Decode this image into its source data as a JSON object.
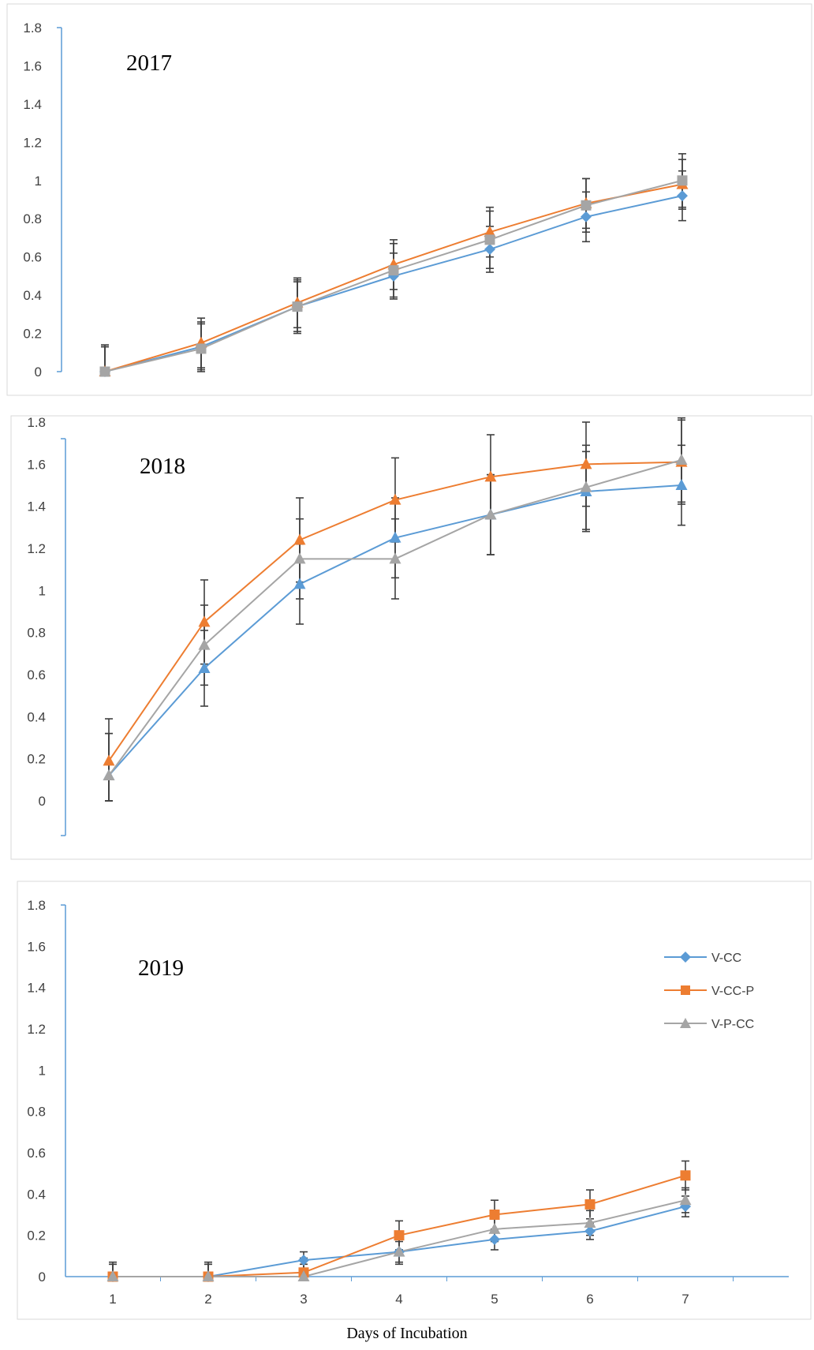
{
  "chart_data": [
    {
      "type": "line",
      "title": "2017",
      "x": [
        1,
        2,
        3,
        4,
        5,
        6,
        7
      ],
      "ylim": [
        0,
        1.8
      ],
      "yticks": [
        "0",
        "0.2",
        "0.4",
        "0.6",
        "0.8",
        "1",
        "1.2",
        "1.4",
        "1.6",
        "1.8"
      ],
      "show_x_tick_labels": false,
      "grid": false,
      "series": [
        {
          "name": "V-CC",
          "color": "#5b9bd5",
          "marker": "diamond",
          "values": [
            0,
            0.13,
            0.34,
            0.5,
            0.64,
            0.81,
            0.92
          ],
          "errors": [
            0.13,
            0.12,
            0.13,
            0.12,
            0.12,
            0.13,
            0.13
          ]
        },
        {
          "name": "V-CC-P",
          "color": "#ed7d31",
          "marker": "triangle",
          "values": [
            0,
            0.15,
            0.36,
            0.56,
            0.73,
            0.88,
            0.98
          ],
          "errors": [
            0.13,
            0.13,
            0.13,
            0.13,
            0.13,
            0.13,
            0.13
          ]
        },
        {
          "name": "V-P-CC",
          "color": "#a5a5a5",
          "marker": "square",
          "values": [
            0,
            0.12,
            0.34,
            0.53,
            0.69,
            0.87,
            1.0
          ],
          "errors": [
            0.14,
            0.14,
            0.14,
            0.14,
            0.15,
            0.14,
            0.14
          ]
        }
      ]
    },
    {
      "type": "line",
      "title": "2018",
      "x": [
        1,
        2,
        3,
        4,
        5,
        6,
        7
      ],
      "ylim": [
        0,
        1.8
      ],
      "yticks": [
        "0",
        "0.2",
        "0.4",
        "0.6",
        "0.8",
        "1",
        "1.2",
        "1.4",
        "1.6",
        "1.8"
      ],
      "show_x_tick_labels": false,
      "grid": false,
      "series": [
        {
          "name": "V-CC",
          "color": "#5b9bd5",
          "marker": "triangle",
          "values": [
            0.12,
            0.63,
            1.03,
            1.25,
            1.36,
            1.47,
            1.5
          ],
          "errors": [
            0.2,
            0.18,
            0.19,
            0.19,
            0.19,
            0.19,
            0.19
          ]
        },
        {
          "name": "V-CC-P",
          "color": "#ed7d31",
          "marker": "triangle",
          "values": [
            0.19,
            0.85,
            1.24,
            1.43,
            1.54,
            1.6,
            1.61
          ],
          "errors": [
            0.2,
            0.2,
            0.2,
            0.2,
            0.2,
            0.2,
            0.2
          ]
        },
        {
          "name": "V-P-CC",
          "color": "#a5a5a5",
          "marker": "triangle",
          "values": [
            0.12,
            0.74,
            1.15,
            1.15,
            1.36,
            1.49,
            1.62
          ],
          "errors": [
            0.2,
            0.19,
            0.19,
            0.19,
            0.19,
            0.2,
            0.2
          ]
        }
      ]
    },
    {
      "type": "line",
      "title": "2019",
      "x": [
        1,
        2,
        3,
        4,
        5,
        6,
        7
      ],
      "xticks": [
        "1",
        "2",
        "3",
        "4",
        "5",
        "6",
        "7"
      ],
      "xlabel": "Days of Incubation",
      "ylim": [
        0,
        1.8
      ],
      "yticks": [
        "0",
        "0.2",
        "0.4",
        "0.6",
        "0.8",
        "1",
        "1.2",
        "1.4",
        "1.6",
        "1.8"
      ],
      "show_x_tick_labels": true,
      "grid": false,
      "legend": {
        "position": "top-right"
      },
      "series": [
        {
          "name": "V-CC",
          "color": "#5b9bd5",
          "marker": "diamond",
          "values": [
            0,
            0,
            0.08,
            0.12,
            0.18,
            0.22,
            0.34
          ],
          "errors": [
            0.06,
            0.06,
            0.04,
            0.05,
            0.05,
            0.04,
            0.05
          ]
        },
        {
          "name": "V-CC-P",
          "color": "#ed7d31",
          "marker": "square",
          "values": [
            0,
            0,
            0.02,
            0.2,
            0.3,
            0.35,
            0.49
          ],
          "errors": [
            0.07,
            0.07,
            0.07,
            0.07,
            0.07,
            0.07,
            0.07
          ]
        },
        {
          "name": "V-P-CC",
          "color": "#a5a5a5",
          "marker": "triangle",
          "values": [
            0,
            0,
            0,
            0.12,
            0.23,
            0.26,
            0.37
          ],
          "errors": [
            0.06,
            0.06,
            0.06,
            0.06,
            0.06,
            0.06,
            0.06
          ]
        }
      ]
    }
  ]
}
